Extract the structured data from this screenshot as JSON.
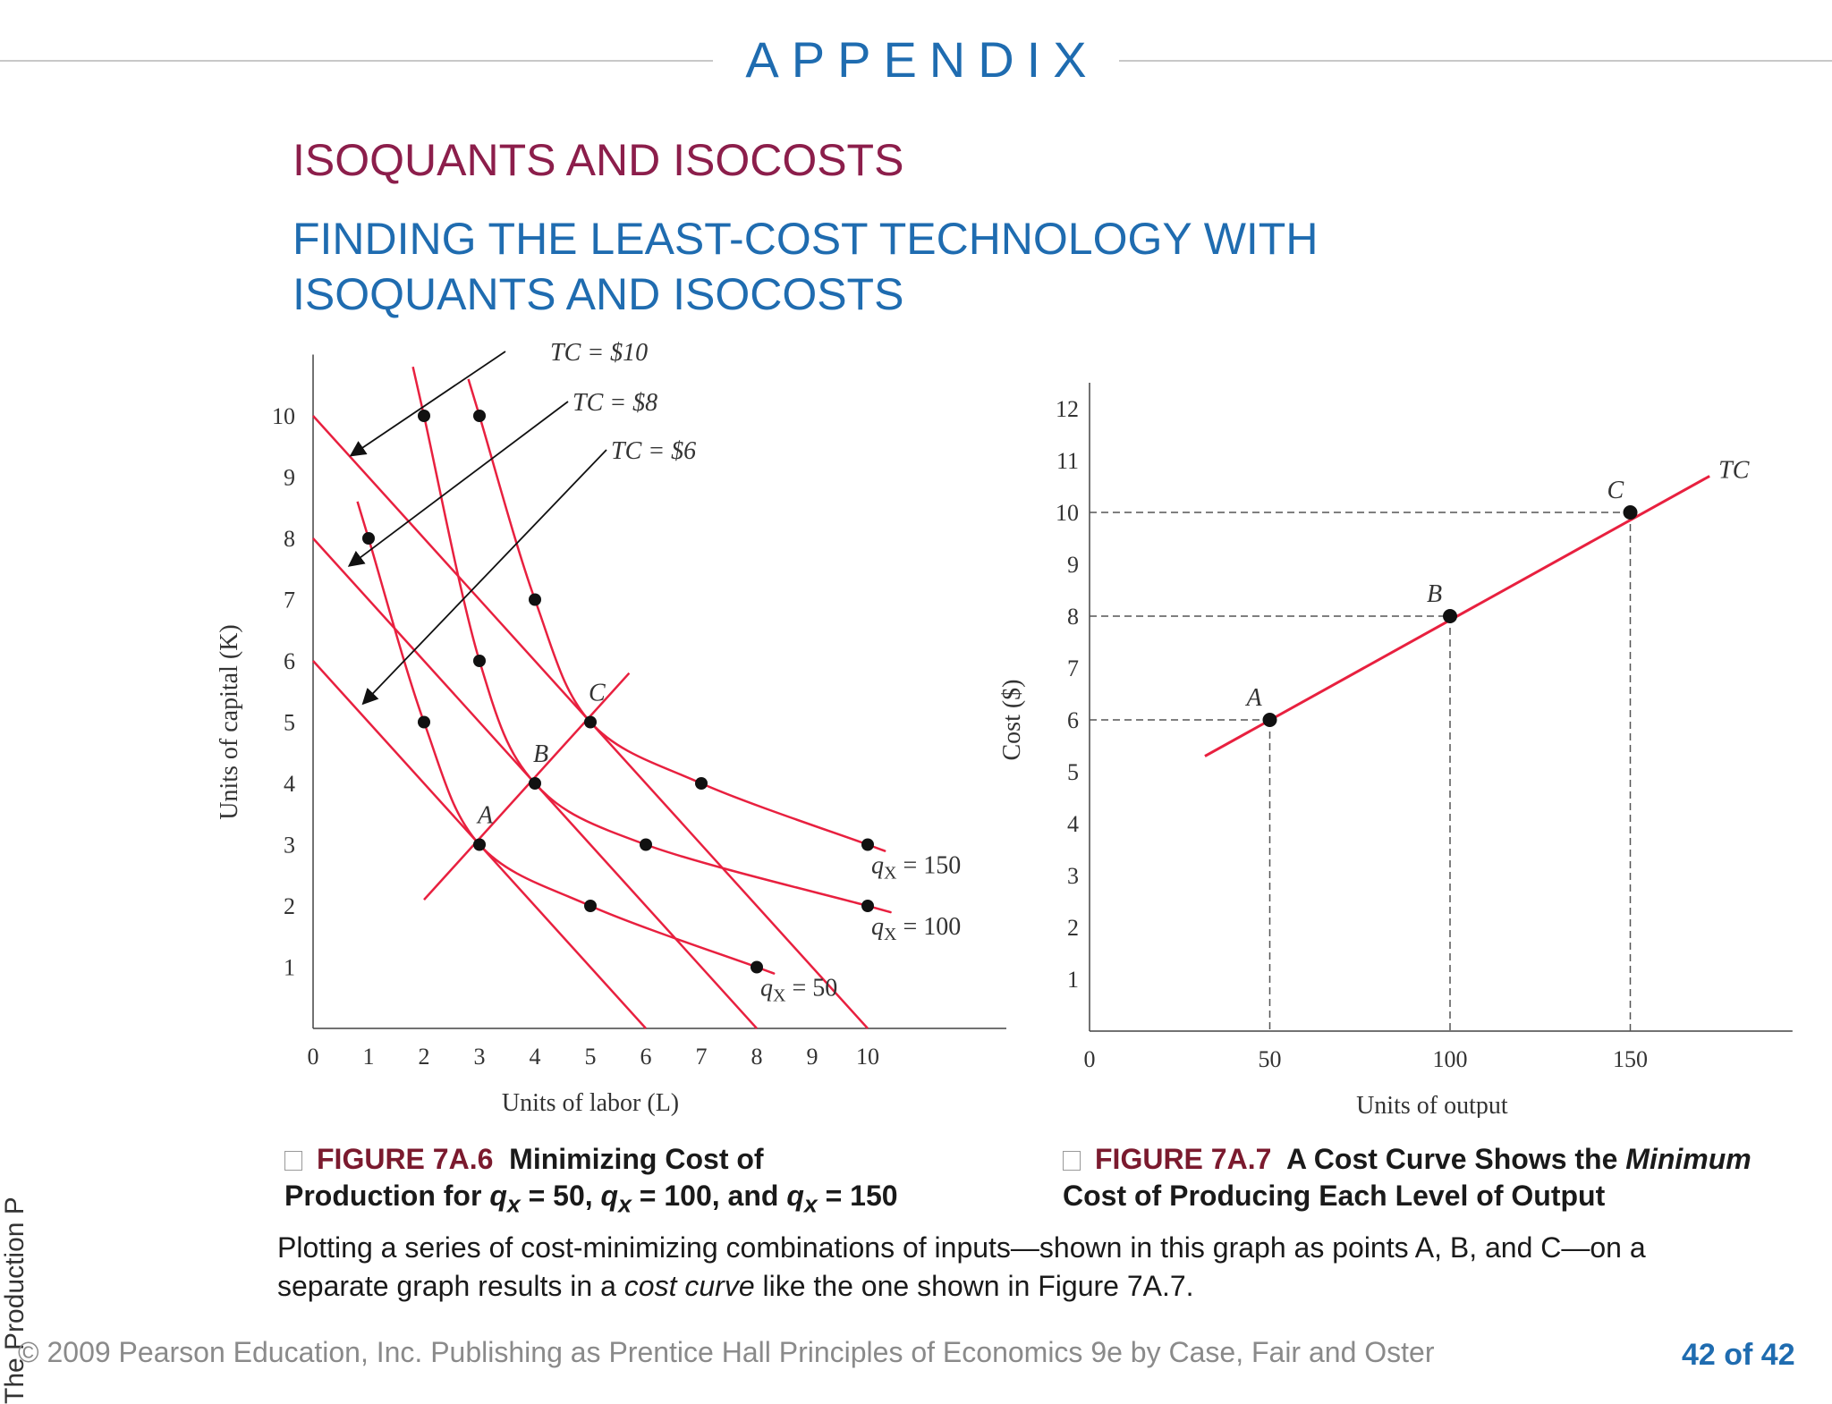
{
  "header": {
    "appendix": "APPENDIX",
    "section_title": "ISOQUANTS AND ISOCOSTS",
    "subtitle_line1": "FINDING THE LEAST-COST TECHNOLOGY WITH",
    "subtitle_line2": "ISOQUANTS AND ISOCOSTS"
  },
  "captions": {
    "fig1_number": "FIGURE 7A.6",
    "fig1_title_a": "Minimizing Cost of",
    "fig1_title_b": "Production for",
    "fig1_q50": " = 50,",
    "fig1_q100": " = 100, and",
    "fig1_q150": " = 150",
    "fig2_number": "FIGURE 7A.7",
    "fig2_title_a": "A Cost Curve Shows the",
    "fig2_title_em": "Minimum",
    "fig2_title_b": "Cost of Producing Each Level of Output"
  },
  "body": {
    "text_a": "Plotting a series of cost-minimizing combinations of inputs—shown in this graph as points A, B, and C—on a separate graph results in a ",
    "text_em": "cost curve",
    "text_b": " like the one shown in Figure 7A.7."
  },
  "footer": {
    "copyright": "© 2009 Pearson Education, Inc. Publishing as Prentice Hall   Principles of Economics 9e by Case, Fair and Oster",
    "page": "42 of 42",
    "side_text": "The Production P"
  },
  "colors": {
    "curve": "#e8203f",
    "blue": "#1f6cb0",
    "maroon": "#8c1e4b"
  },
  "chart_data": [
    {
      "type": "line",
      "xlabel": "Units of labor (L)",
      "ylabel": "Units of capital (K)",
      "xlim": [
        0,
        12.5
      ],
      "ylim": [
        0,
        11
      ],
      "x_ticks": [
        0,
        1,
        2,
        3,
        4,
        5,
        6,
        7,
        8,
        9,
        10
      ],
      "y_ticks": [
        1,
        2,
        3,
        4,
        5,
        6,
        7,
        8,
        9,
        10
      ],
      "isocosts": [
        {
          "label": "TC = $6",
          "points": [
            [
              0,
              6
            ],
            [
              6,
              0
            ]
          ]
        },
        {
          "label": "TC = $8",
          "points": [
            [
              0,
              8
            ],
            [
              8,
              0
            ]
          ]
        },
        {
          "label": "TC = $10",
          "points": [
            [
              0,
              10
            ],
            [
              10,
              0
            ]
          ]
        }
      ],
      "isoquants": [
        {
          "label": "50",
          "points": [
            [
              1,
              8
            ],
            [
              2,
              5
            ],
            [
              3,
              3
            ],
            [
              5,
              2
            ],
            [
              8,
              1
            ]
          ]
        },
        {
          "label": "100",
          "points": [
            [
              2,
              10
            ],
            [
              3,
              6
            ],
            [
              4,
              4
            ],
            [
              6,
              3
            ],
            [
              10,
              2
            ]
          ]
        },
        {
          "label": "150",
          "points": [
            [
              3,
              10
            ],
            [
              4,
              7
            ],
            [
              5,
              5
            ],
            [
              7,
              4
            ],
            [
              10,
              3
            ]
          ]
        }
      ],
      "expansion_path": {
        "points": [
          [
            2,
            2.1
          ],
          [
            5.7,
            5.8
          ]
        ]
      },
      "labeled_points": [
        {
          "label": "A",
          "x": 3,
          "y": 3
        },
        {
          "label": "B",
          "x": 4,
          "y": 4
        },
        {
          "label": "C",
          "x": 5,
          "y": 5
        }
      ]
    },
    {
      "type": "line",
      "xlabel": "Units of output",
      "ylabel": "Cost ($)",
      "xlim": [
        0,
        195
      ],
      "ylim": [
        0,
        12.5
      ],
      "x_ticks": [
        0,
        50,
        100,
        150
      ],
      "y_ticks": [
        1,
        2,
        3,
        4,
        5,
        6,
        7,
        8,
        9,
        10,
        11,
        12
      ],
      "series": [
        {
          "name": "TC",
          "points": [
            [
              32,
              5.3
            ],
            [
              172,
              10.7
            ]
          ]
        }
      ],
      "labeled_points": [
        {
          "label": "A",
          "x": 50,
          "y": 6
        },
        {
          "label": "B",
          "x": 100,
          "y": 8
        },
        {
          "label": "C",
          "x": 150,
          "y": 10
        }
      ]
    }
  ]
}
